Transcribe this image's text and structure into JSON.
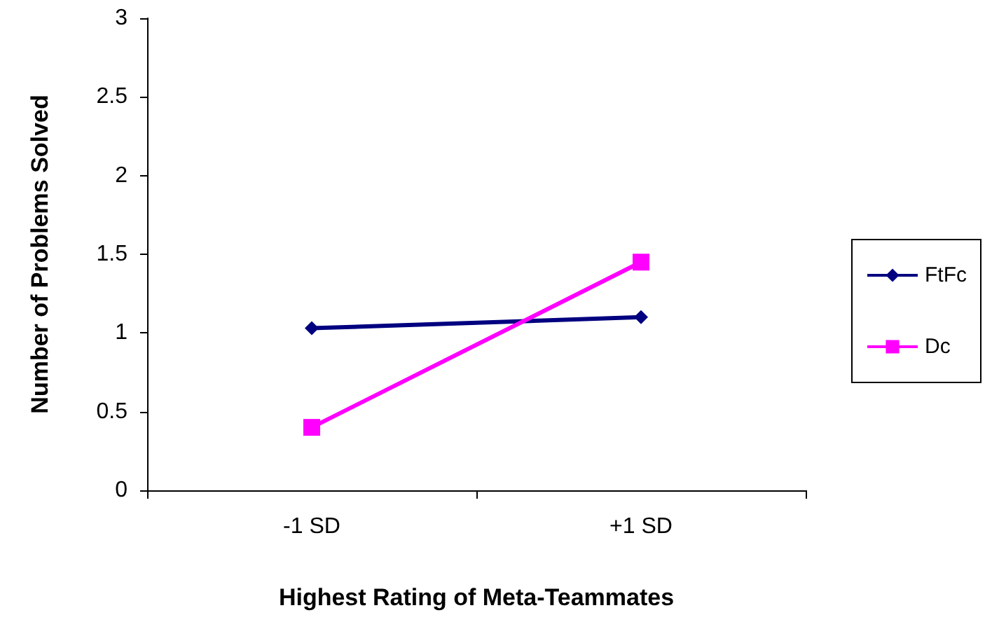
{
  "chart_data": {
    "type": "line",
    "xlabel": "Highest Rating of Meta-Teammates",
    "ylabel": "Number of Problems Solved",
    "categories": [
      "-1 SD",
      "+1 SD"
    ],
    "series": [
      {
        "name": "FtFc",
        "color": "#000080",
        "marker": "diamond",
        "values": [
          1.03,
          1.1
        ]
      },
      {
        "name": "Dc",
        "color": "#ff00ff",
        "marker": "square",
        "values": [
          0.4,
          1.45
        ]
      }
    ],
    "ylim": [
      0,
      3
    ],
    "yticks": [
      0,
      0.5,
      1,
      1.5,
      2,
      2.5,
      3
    ],
    "grid": false,
    "legend": "right"
  }
}
